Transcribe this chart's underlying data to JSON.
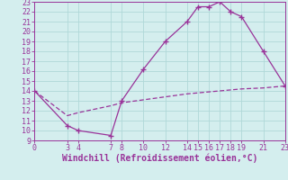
{
  "xlabel": "Windchill (Refroidissement éolien,°C)",
  "line1_x": [
    0,
    3,
    4,
    7,
    8,
    10,
    12,
    14,
    15,
    16,
    17,
    18,
    19,
    21,
    23
  ],
  "line1_y": [
    14.0,
    10.5,
    10.0,
    9.5,
    13.0,
    16.2,
    19.0,
    21.0,
    22.5,
    22.5,
    23.0,
    22.0,
    21.5,
    18.0,
    14.5
  ],
  "line2_x": [
    0,
    3,
    4,
    7,
    8,
    10,
    12,
    14,
    15,
    16,
    17,
    18,
    19,
    21,
    23
  ],
  "line2_y": [
    14.0,
    11.5,
    11.8,
    12.5,
    12.8,
    13.1,
    13.4,
    13.7,
    13.8,
    13.9,
    14.0,
    14.1,
    14.2,
    14.3,
    14.5
  ],
  "line_color": "#993399",
  "bg_color": "#d4eeee",
  "grid_color": "#b0d8d8",
  "xlim": [
    0,
    23
  ],
  "ylim": [
    9,
    23
  ],
  "xticks": [
    0,
    3,
    4,
    7,
    8,
    10,
    12,
    14,
    15,
    16,
    17,
    18,
    19,
    21,
    23
  ],
  "yticks": [
    9,
    10,
    11,
    12,
    13,
    14,
    15,
    16,
    17,
    18,
    19,
    20,
    21,
    22,
    23
  ],
  "tick_fontsize": 6.0,
  "xlabel_fontsize": 7.0
}
